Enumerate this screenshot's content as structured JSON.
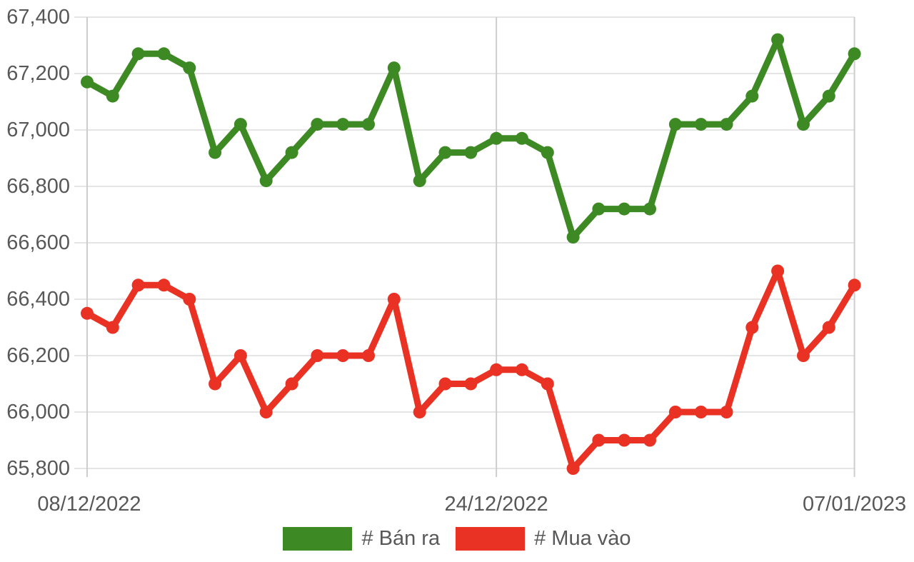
{
  "chart_data": {
    "type": "line",
    "title": "",
    "xlabel": "",
    "ylabel": "",
    "grid": true,
    "legend_position": "bottom",
    "ylim": [
      65800,
      67400
    ],
    "y_tick_step": 200,
    "y_tick_labels": [
      "67,400",
      "67,200",
      "67,000",
      "66,800",
      "66,600",
      "66,400",
      "66,200",
      "66,000",
      "65,800"
    ],
    "x_tick_labels": [
      "08/12/2022",
      "24/12/2022",
      "07/01/2023"
    ],
    "x_tick_indices": [
      0,
      16,
      30
    ],
    "n_points": 31,
    "series": [
      {
        "name": "# Bán ra",
        "color": "#3d8a24",
        "values": [
          67170,
          67120,
          67270,
          67270,
          67220,
          66920,
          67020,
          66820,
          66920,
          67020,
          67020,
          67020,
          67220,
          66820,
          66920,
          66920,
          66970,
          66970,
          66920,
          66620,
          66720,
          66720,
          66720,
          67020,
          67020,
          67020,
          67120,
          67320,
          67020,
          67120,
          67270
        ]
      },
      {
        "name": "# Mua vào",
        "color": "#e93223",
        "values": [
          66350,
          66300,
          66450,
          66450,
          66400,
          66100,
          66200,
          66000,
          66100,
          66200,
          66200,
          66200,
          66400,
          66000,
          66100,
          66100,
          66150,
          66150,
          66100,
          65800,
          65900,
          65900,
          65900,
          66000,
          66000,
          66000,
          66300,
          66500,
          66200,
          66300,
          66450
        ]
      }
    ],
    "colors": {
      "axis_text": "#58585a",
      "h_gridline": "#e5e5e5",
      "v_gridline": "#cdcdcd",
      "background": "#ffffff"
    }
  }
}
